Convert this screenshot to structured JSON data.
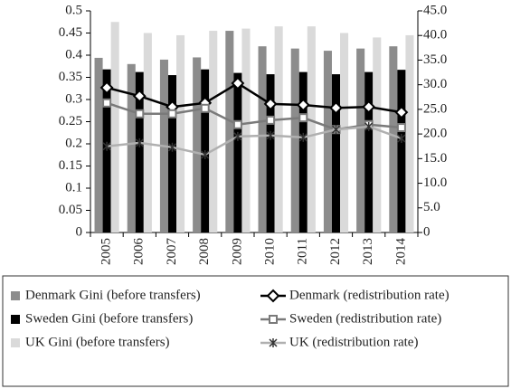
{
  "chart_data": {
    "type": "bar",
    "categories": [
      "2005",
      "2006",
      "2007",
      "2008",
      "2009",
      "2010",
      "2011",
      "2012",
      "2013",
      "2014"
    ],
    "series": [
      {
        "name": "Denmark Gini (before transfers)",
        "type": "bar",
        "color": "#8c8c8c",
        "values": [
          0.394,
          0.38,
          0.39,
          0.395,
          0.455,
          0.42,
          0.415,
          0.41,
          0.415,
          0.42
        ]
      },
      {
        "name": "Sweden Gini (before transfers)",
        "type": "bar",
        "color": "#000000",
        "values": [
          0.368,
          0.362,
          0.355,
          0.368,
          0.36,
          0.357,
          0.362,
          0.357,
          0.362,
          0.367
        ]
      },
      {
        "name": "UK Gini (before transfers)",
        "type": "bar",
        "color": "#dadada",
        "values": [
          0.475,
          0.45,
          0.445,
          0.455,
          0.46,
          0.465,
          0.465,
          0.45,
          0.44,
          0.445
        ]
      },
      {
        "name": "Denmark (redistribution rate)",
        "type": "line",
        "axis": "y2",
        "marker": "diamond",
        "color": "#000000",
        "values": [
          29.4,
          27.7,
          25.5,
          26.3,
          30.3,
          26.1,
          25.9,
          25.3,
          25.5,
          24.4
        ]
      },
      {
        "name": "Sweden (redistribution rate)",
        "type": "line",
        "axis": "y2",
        "marker": "square",
        "color": "#7a7a7a",
        "values": [
          26.3,
          24.1,
          24.1,
          25.2,
          21.9,
          22.8,
          23.3,
          20.9,
          21.9,
          21.3
        ]
      },
      {
        "name": "UK (redistribution rate)",
        "type": "line",
        "axis": "y2",
        "marker": "star",
        "color": "#b0b0b0",
        "values": [
          17.5,
          18.2,
          17.3,
          15.8,
          19.5,
          19.7,
          19.3,
          20.9,
          21.5,
          19.1
        ]
      }
    ],
    "ylim": [
      0,
      0.5
    ],
    "yticks": [
      0,
      0.05,
      0.1,
      0.15,
      0.2,
      0.25,
      0.3,
      0.35,
      0.4,
      0.45,
      0.5
    ],
    "y2lim": [
      0,
      45
    ],
    "y2ticks": [
      0,
      {
        "value": 5,
        "label": "5.0"
      },
      {
        "value": 10,
        "label": "10.0"
      },
      {
        "value": 15,
        "label": "15.0"
      },
      {
        "value": 20,
        "label": "20.0"
      },
      {
        "value": 25,
        "label": "25.0"
      },
      {
        "value": 30,
        "label": "30.0"
      },
      {
        "value": 35,
        "label": "35.0"
      },
      {
        "value": 40,
        "label": "40.0"
      },
      {
        "value": 45,
        "label": "45.0"
      }
    ],
    "legend": "bottom"
  }
}
